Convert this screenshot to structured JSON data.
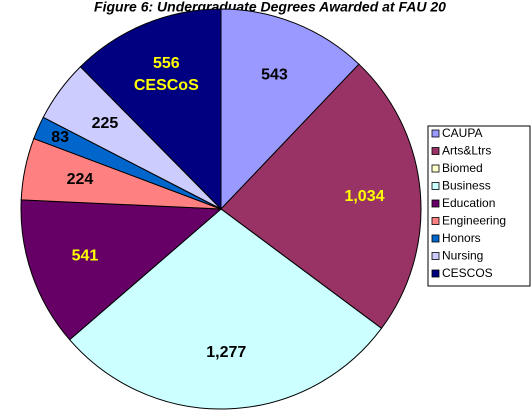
{
  "chart_data": {
    "type": "pie",
    "title": "Figure 6: Undergraduate Degrees Awarded at FAU 20",
    "categories": [
      "CAUPA",
      "Arts&Ltrs",
      "Biomed",
      "Business",
      "Education",
      "Engineering",
      "Honors",
      "Nursing",
      "CESCOS"
    ],
    "values": [
      543,
      1034,
      0,
      1277,
      541,
      224,
      83,
      225,
      556
    ],
    "value_labels": [
      "543",
      "1,034",
      null,
      "1,277",
      "541",
      "224",
      "83",
      "225",
      "556"
    ],
    "colors": [
      "#9999ff",
      "#993366",
      "#ffffcc",
      "#ccffff",
      "#660066",
      "#ff8080",
      "#0066cc",
      "#ccccff",
      "#000080"
    ],
    "label_colors": [
      "#000000",
      "#ffff00",
      "#000000",
      "#000000",
      "#ffff00",
      "#000000",
      "#000000",
      "#000000",
      "#ffff00"
    ],
    "annotation": "CESCoS",
    "legend": "right"
  }
}
